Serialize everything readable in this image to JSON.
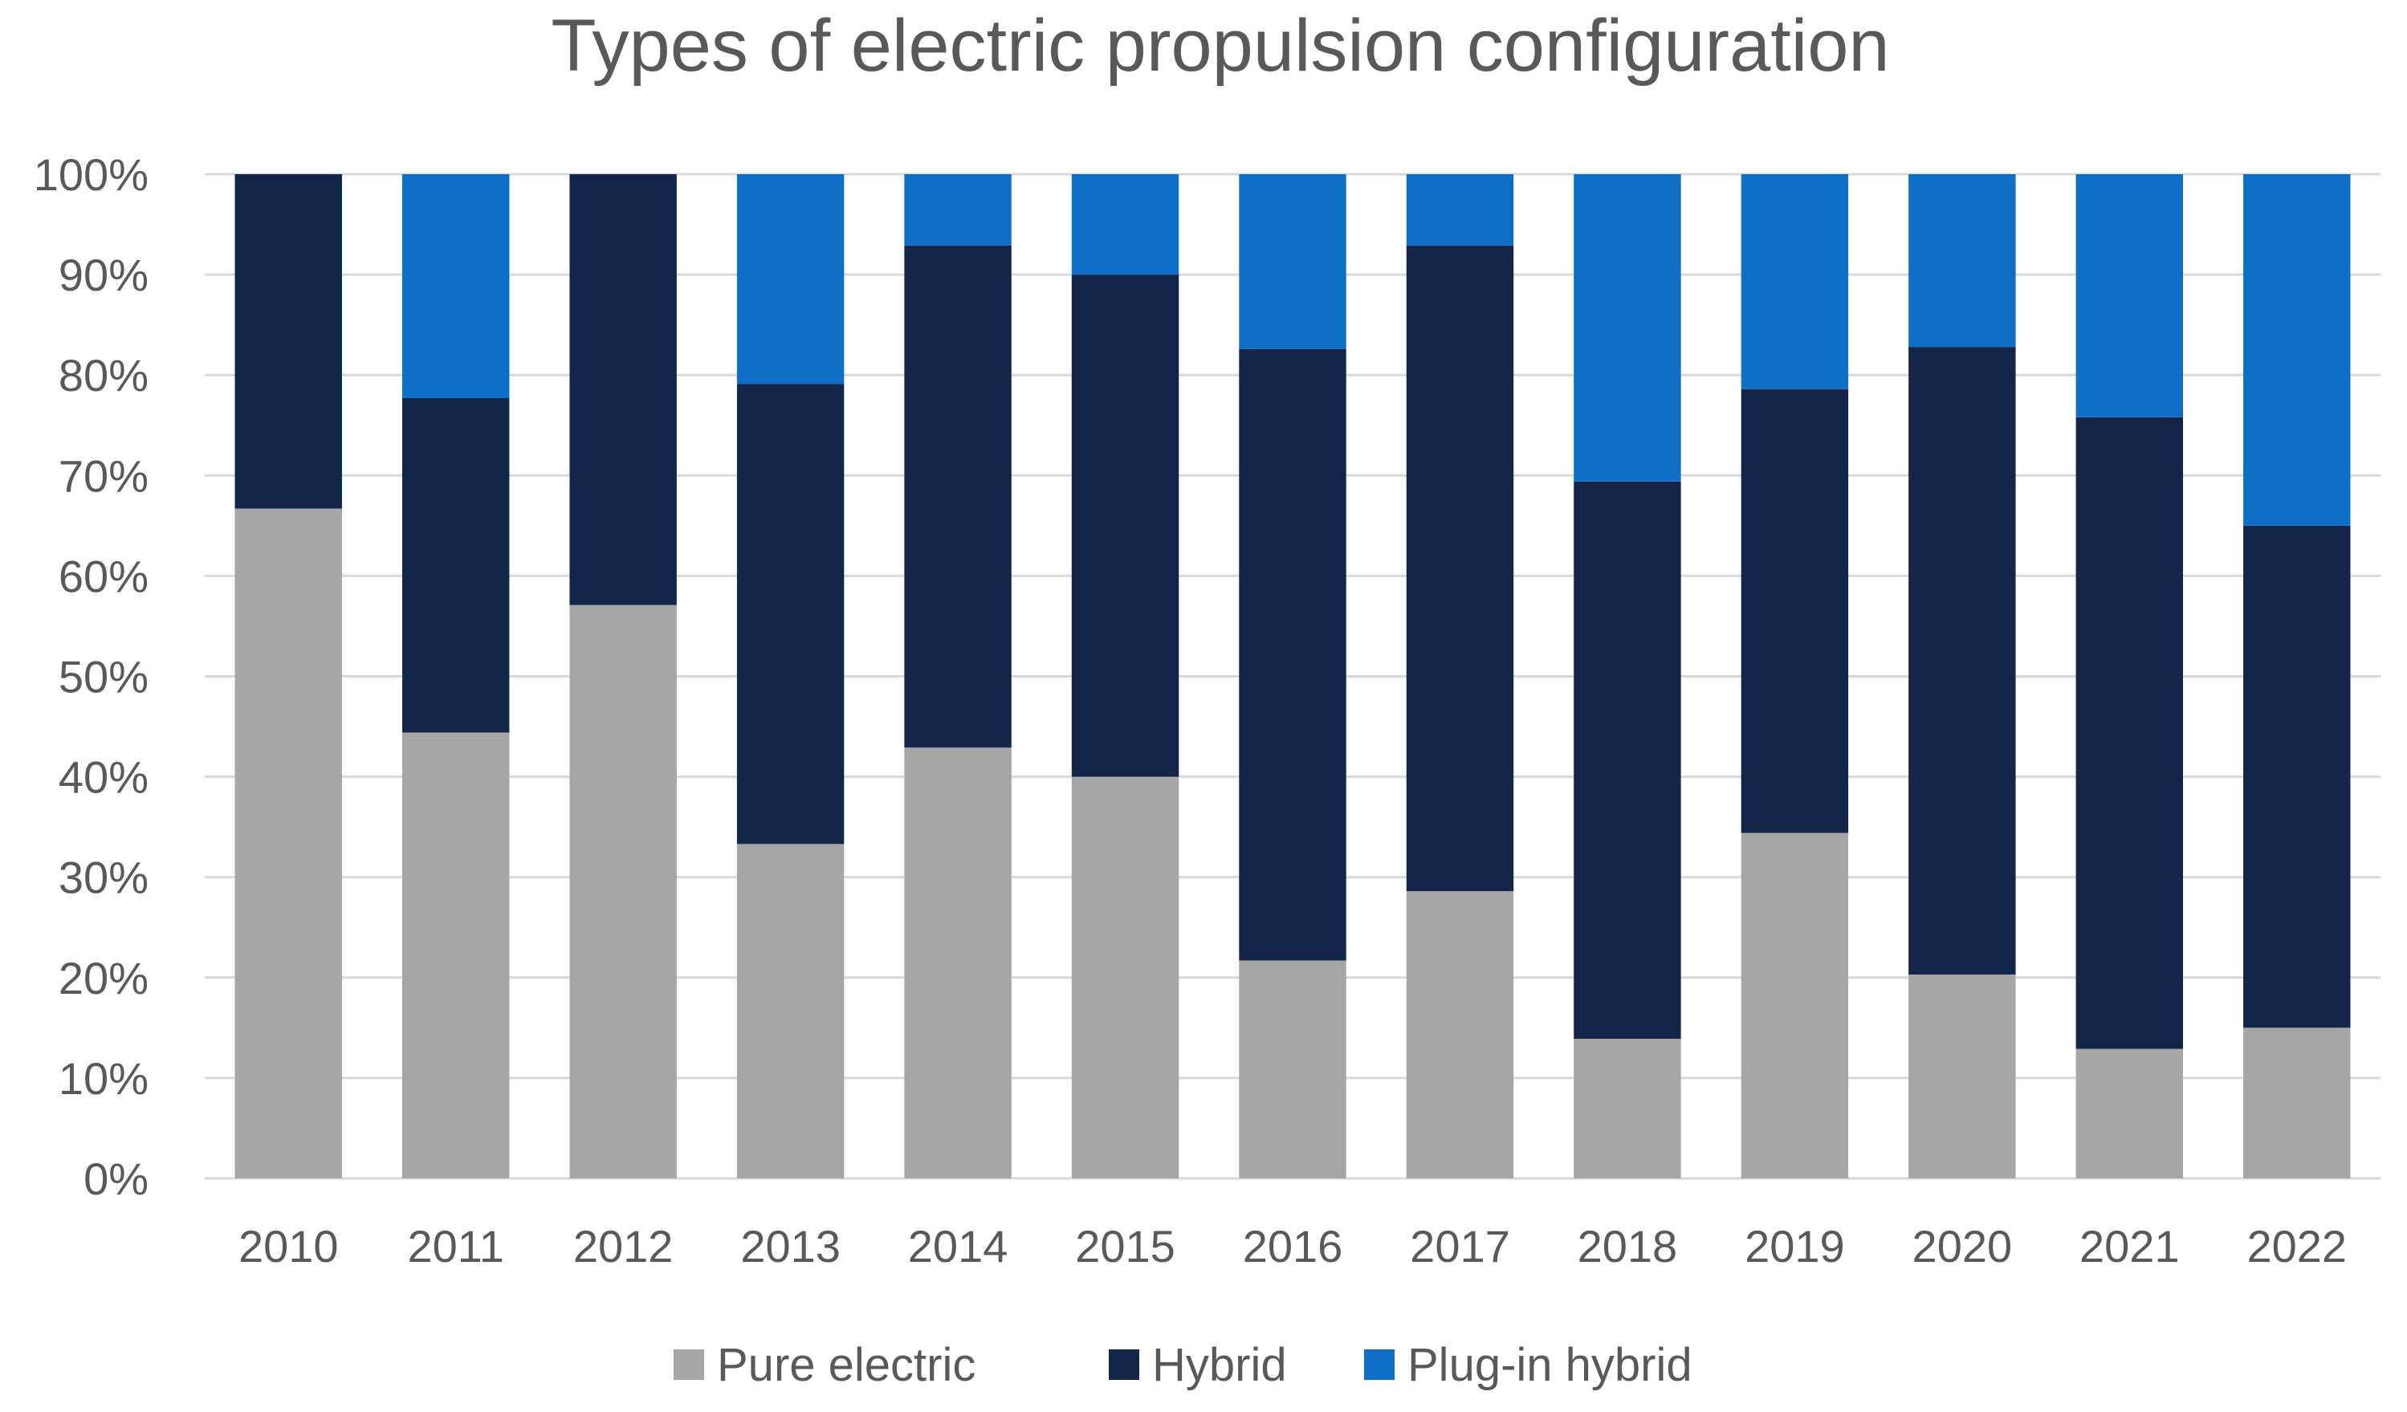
{
  "chart_data": {
    "type": "bar",
    "stacked": true,
    "title": "Types of electric propulsion configuration",
    "xlabel": "",
    "ylabel": "",
    "ylim": [
      0,
      100
    ],
    "y_ticks": [
      "0%",
      "10%",
      "20%",
      "30%",
      "40%",
      "50%",
      "60%",
      "70%",
      "80%",
      "90%",
      "100%"
    ],
    "grid": true,
    "legend_position": "bottom",
    "categories": [
      "2010",
      "2011",
      "2012",
      "2013",
      "2014",
      "2015",
      "2016",
      "2017",
      "2018",
      "2019",
      "2020",
      "2021",
      "2022"
    ],
    "series": [
      {
        "name": "Pure electric",
        "color": "#a6a6a6",
        "values": [
          66.7,
          44.4,
          57.1,
          33.3,
          42.9,
          40.0,
          21.7,
          28.6,
          13.9,
          34.4,
          20.3,
          12.9,
          15.0
        ]
      },
      {
        "name": "Hybrid",
        "color": "#13264a",
        "values": [
          33.3,
          33.3,
          42.9,
          45.8,
          50.0,
          50.0,
          60.9,
          64.3,
          55.5,
          44.2,
          62.5,
          62.9,
          50.0
        ]
      },
      {
        "name": "Plug-in hybrid",
        "color": "#0f6fc6",
        "values": [
          0.0,
          22.3,
          0.0,
          20.9,
          7.1,
          10.0,
          17.4,
          7.1,
          30.6,
          21.4,
          17.2,
          24.2,
          35.0
        ]
      }
    ]
  }
}
